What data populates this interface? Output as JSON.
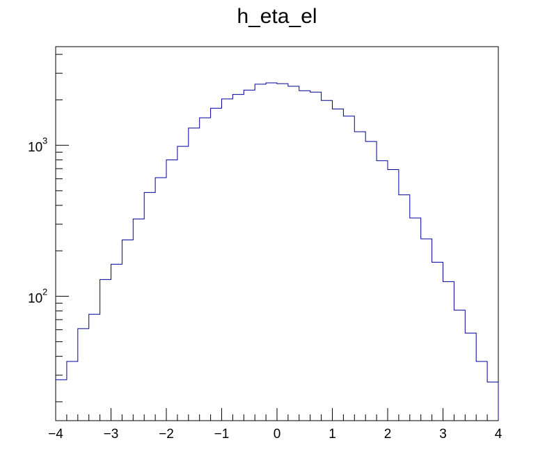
{
  "chart_data": {
    "type": "bar",
    "style": "step-histogram",
    "title": "h_eta_el",
    "xlabel": "",
    "ylabel": "",
    "xlim": [
      -4,
      4
    ],
    "ylim": [
      15,
      4500
    ],
    "ylog": true,
    "grid": false,
    "line_color": "#000099",
    "x_ticks": [
      -4,
      -3,
      -2,
      -1,
      0,
      1,
      2,
      3,
      4
    ],
    "x_tick_labels": [
      "−4",
      "−3",
      "−2",
      "−1",
      "0",
      "1",
      "2",
      "3",
      "4"
    ],
    "y_major_ticks": [
      100,
      1000
    ],
    "y_tick_labels": [
      {
        "value": 100,
        "base": "10",
        "exp": "2"
      },
      {
        "value": 1000,
        "base": "10",
        "exp": "3"
      }
    ],
    "bin_edges": [
      -4.0,
      -3.8,
      -3.6,
      -3.4,
      -3.2,
      -3.0,
      -2.8,
      -2.6,
      -2.4,
      -2.2,
      -2.0,
      -1.8,
      -1.6,
      -1.4,
      -1.2,
      -1.0,
      -0.8,
      -0.6,
      -0.4,
      -0.2,
      0.0,
      0.2,
      0.4,
      0.6,
      0.8,
      1.0,
      1.2,
      1.4,
      1.6,
      1.8,
      2.0,
      2.2,
      2.4,
      2.6,
      2.8,
      3.0,
      3.2,
      3.4,
      3.6,
      3.8,
      4.0
    ],
    "values": [
      28,
      37,
      61,
      76,
      129,
      163,
      236,
      325,
      487,
      610,
      800,
      984,
      1300,
      1520,
      1760,
      2030,
      2170,
      2320,
      2540,
      2590,
      2560,
      2460,
      2300,
      2250,
      1980,
      1740,
      1560,
      1230,
      1060,
      790,
      690,
      470,
      330,
      240,
      168,
      125,
      81,
      57,
      37,
      27
    ]
  }
}
